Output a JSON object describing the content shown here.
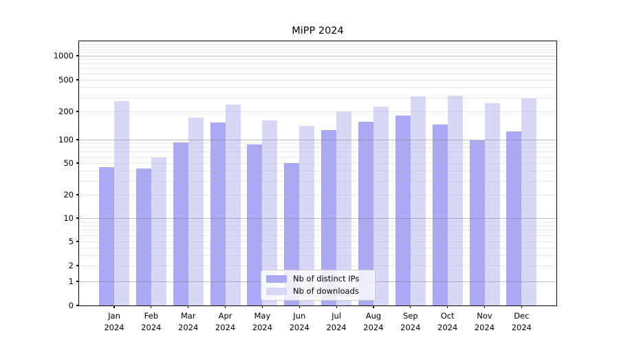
{
  "chart_data": {
    "type": "bar",
    "title": "MiPP 2024",
    "categories": [
      "Jan 2024",
      "Feb 2024",
      "Mar 2024",
      "Apr 2024",
      "May 2024",
      "Jun 2024",
      "Jul 2024",
      "Aug 2024",
      "Sep 2024",
      "Oct 2024",
      "Nov 2024",
      "Dec 2024"
    ],
    "series": [
      {
        "name": "Nb of distinct IPs",
        "color": "#a9a9f4",
        "values": [
          44,
          43,
          92,
          153,
          86,
          50,
          126,
          155,
          182,
          146,
          97,
          122
        ]
      },
      {
        "name": "Nb of downloads",
        "color": "#d7d7f6",
        "values": [
          270,
          59,
          172,
          243,
          161,
          140,
          200,
          231,
          307,
          316,
          254,
          291
        ]
      }
    ],
    "xlabel": "",
    "ylabel": "",
    "yscale": "symlog",
    "yticks": [
      0,
      1,
      2,
      5,
      10,
      20,
      50,
      100,
      200,
      500,
      1000
    ],
    "ylim": [
      0,
      1450
    ],
    "grid": true,
    "legend_position": "lower center",
    "colors": {
      "major_grid": "#6e6e6e",
      "minor_grid": "#afafaf",
      "spine": "#000000",
      "background": "#ffffff"
    }
  }
}
